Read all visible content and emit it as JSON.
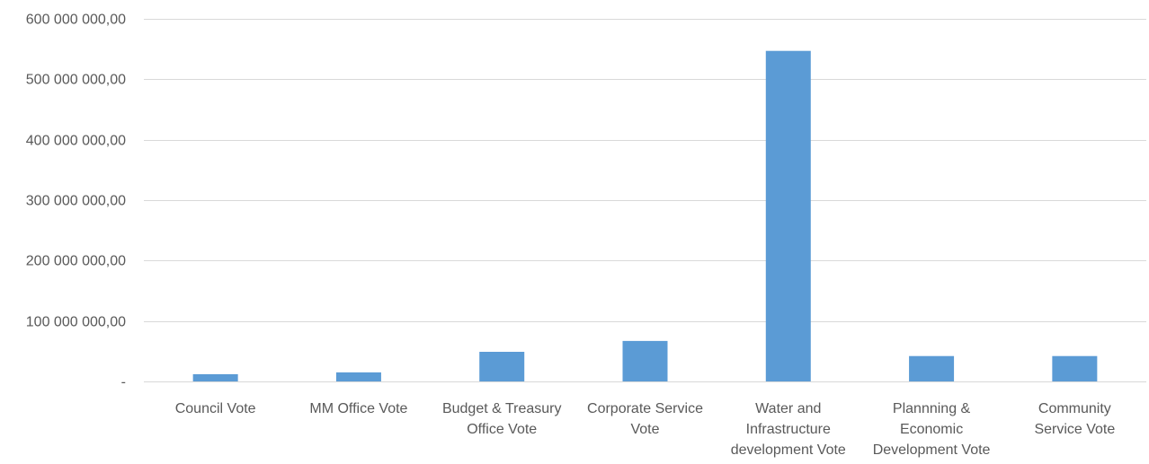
{
  "chart_data": {
    "type": "bar",
    "title": "",
    "xlabel": "",
    "ylabel": "",
    "categories": [
      "Council Vote",
      "MM Office Vote",
      "Budget & Treasury Office Vote",
      "Corporate Service Vote",
      "Water and Infrastructure development Vote",
      "Plannning & Economic Development Vote",
      "Community Service Vote"
    ],
    "category_lines": [
      [
        "Council Vote"
      ],
      [
        "MM Office Vote"
      ],
      [
        "Budget & Treasury",
        "Office Vote"
      ],
      [
        "Corporate Service",
        "Vote"
      ],
      [
        "Water and",
        "Infrastructure",
        "development Vote"
      ],
      [
        "Plannning &",
        "Economic",
        "Development Vote"
      ],
      [
        "Community",
        "Service Vote"
      ]
    ],
    "values": [
      12000000,
      15000000,
      49000000,
      67000000,
      547000000,
      42000000,
      42000000
    ],
    "ylim": [
      0,
      600000000
    ],
    "yticks": [
      0,
      100000000,
      200000000,
      300000000,
      400000000,
      500000000,
      600000000
    ],
    "ytick_labels": [
      "-",
      "100 000 000,00",
      "200 000 000,00",
      "300 000 000,00",
      "400 000 000,00",
      "500 000 000,00",
      "600 000 000,00"
    ],
    "grid": true,
    "legend": "none",
    "bar_color": "#5b9bd5"
  }
}
